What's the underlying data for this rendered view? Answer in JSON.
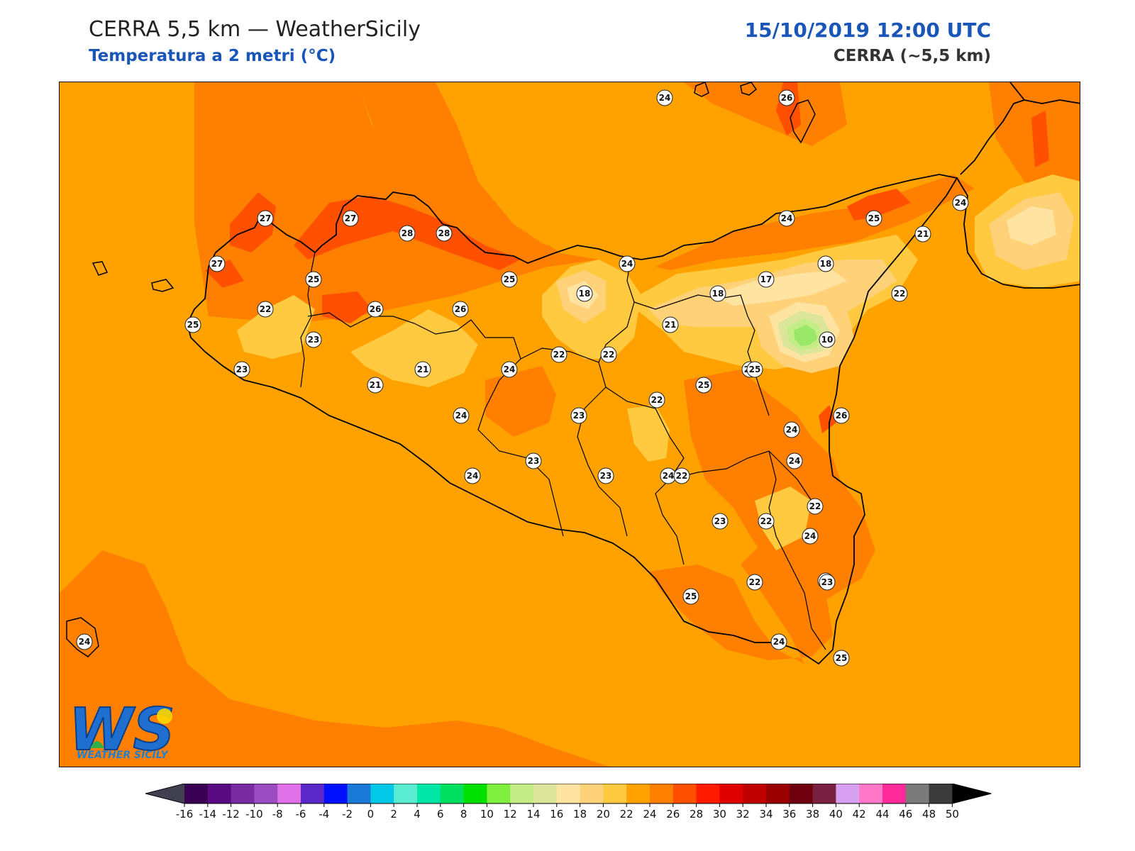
{
  "header": {
    "title": "CERRA 5,5 km — WeatherSicily",
    "subtitle": "Temperatura a 2 metri (°C)",
    "datetime": "15/10/2019 12:00 UTC",
    "model": "CERRA (~5,5 km)"
  },
  "map": {
    "region": "Sicily",
    "colors": {
      "t24": "#ffa200",
      "t26": "#ff7f00",
      "t28": "#ff5000",
      "t22": "#ffc940",
      "t20": "#ffd27a",
      "t18": "#ffe3a0",
      "t14": "#dce69a",
      "t12": "#c4ec87",
      "t10": "#9ae86a",
      "t8": "#2ee02e",
      "coast": "#000000"
    },
    "station_values": [
      24,
      26,
      27,
      27,
      28,
      28,
      27,
      25,
      22,
      25,
      23,
      26,
      26,
      25,
      24,
      24,
      25,
      24,
      21,
      18,
      18,
      17,
      18,
      22,
      21,
      10,
      23,
      21,
      21,
      24,
      22,
      22,
      24,
      25,
      24,
      23,
      24,
      22,
      26,
      24,
      24,
      23,
      25,
      23,
      24,
      22,
      24,
      22,
      23,
      22,
      24,
      25,
      22,
      23,
      24,
      25,
      24
    ]
  },
  "colorbar": {
    "ticks": [
      "-16",
      "-14",
      "-12",
      "-10",
      "-8",
      "-6",
      "-4",
      "-2",
      "0",
      "2",
      "4",
      "6",
      "8",
      "10",
      "12",
      "14",
      "16",
      "18",
      "20",
      "22",
      "24",
      "26",
      "28",
      "30",
      "32",
      "34",
      "36",
      "38",
      "40",
      "42",
      "44",
      "46",
      "48",
      "50"
    ],
    "colors": [
      "#3a0052",
      "#5a0a80",
      "#7a2aa0",
      "#9a4cc0",
      "#e070e8",
      "#5a28c8",
      "#0010ff",
      "#1a78d8",
      "#00c8e6",
      "#5aecd0",
      "#00e6a6",
      "#00e060",
      "#00e000",
      "#80f040",
      "#c4ec87",
      "#dce69a",
      "#ffe3a0",
      "#ffd27a",
      "#ffc940",
      "#ffa200",
      "#ff7f00",
      "#ff5000",
      "#ff1a00",
      "#e00000",
      "#c00000",
      "#9a0000",
      "#700010",
      "#7a2040",
      "#d8a0f0",
      "#ff78c8",
      "#ff2a9a",
      "#7a7a7a",
      "#3a3a3a"
    ],
    "under_color": "#404050",
    "over_color": "#000000"
  },
  "logo": {
    "letters": "WS",
    "text": "WEATHER SICILY"
  }
}
